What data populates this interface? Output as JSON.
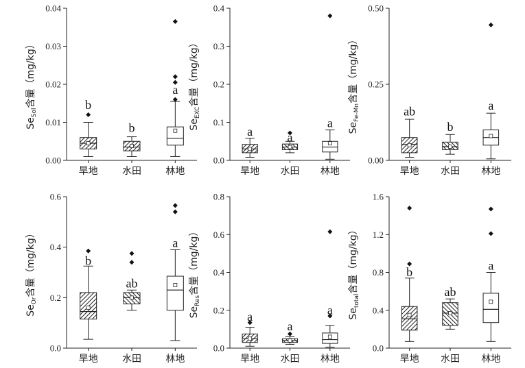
{
  "chart_data": [
    {
      "type": "boxplot",
      "ylabel": {
        "main": "Se",
        "sub": "Sol",
        "rest": "含量（mg/kg）"
      },
      "ylim": [
        0,
        0.04
      ],
      "yticks": [
        0,
        0.01,
        0.02,
        0.03,
        0.04
      ],
      "ytick_labels": [
        "0.00",
        "0.01",
        "0.02",
        "0.03",
        "0.04"
      ],
      "categories": [
        "旱地",
        "水田",
        "林地"
      ],
      "boxes": [
        {
          "q1": 0.003,
          "median": 0.0045,
          "q3": 0.006,
          "whisker_low": 0.001,
          "whisker_high": 0.01,
          "mean": 0.0045,
          "outliers": [
            0.012
          ],
          "sig": "b",
          "sig_y": 0.0135,
          "pattern": "fwd"
        },
        {
          "q1": 0.0025,
          "median": 0.0035,
          "q3": 0.005,
          "whisker_low": 0.001,
          "whisker_high": 0.0062,
          "mean": 0.0038,
          "outliers": [],
          "sig": "b",
          "sig_y": 0.0075,
          "pattern": "fwd"
        },
        {
          "q1": 0.004,
          "median": 0.0058,
          "q3": 0.0088,
          "whisker_low": 0.001,
          "whisker_high": 0.0155,
          "mean": 0.0078,
          "outliers": [
            0.0365,
            0.022,
            0.0205,
            0.016
          ],
          "sig": "a",
          "sig_y": 0.0175,
          "pattern": "none"
        }
      ]
    },
    {
      "type": "boxplot",
      "ylabel": {
        "main": "Se",
        "sub": "EXC",
        "rest": "含量（mg/kg）"
      },
      "ylim": [
        0,
        0.4
      ],
      "yticks": [
        0,
        0.1,
        0.2,
        0.3,
        0.4
      ],
      "ytick_labels": [
        "0.0",
        "0.1",
        "0.2",
        "0.3",
        "0.4"
      ],
      "categories": [
        "旱地",
        "水田",
        "林地"
      ],
      "boxes": [
        {
          "q1": 0.02,
          "median": 0.03,
          "q3": 0.042,
          "whisker_low": 0.008,
          "whisker_high": 0.058,
          "mean": 0.03,
          "outliers": [],
          "sig": "a",
          "sig_y": 0.065,
          "pattern": "fwd"
        },
        {
          "q1": 0.028,
          "median": 0.035,
          "q3": 0.043,
          "whisker_low": 0.02,
          "whisker_high": 0.05,
          "mean": 0.035,
          "outliers": [
            0.072
          ],
          "sig": "a",
          "sig_y": 0.05,
          "pattern": "back"
        },
        {
          "q1": 0.022,
          "median": 0.035,
          "q3": 0.05,
          "whisker_low": 0.003,
          "whisker_high": 0.08,
          "mean": 0.045,
          "outliers": [
            0.38
          ],
          "sig": "a",
          "sig_y": 0.087,
          "pattern": "none"
        }
      ]
    },
    {
      "type": "boxplot",
      "ylabel": {
        "main": "Se",
        "sub": "Fe-Mn",
        "rest": "含量（mg/kg）"
      },
      "ylim": [
        0,
        0.5
      ],
      "yticks": [
        0,
        0.25,
        0.5
      ],
      "ytick_labels": [
        "0.00",
        "0.25",
        "0.50"
      ],
      "categories": [
        "旱地",
        "水田",
        "林地"
      ],
      "boxes": [
        {
          "q1": 0.025,
          "median": 0.052,
          "q3": 0.075,
          "whisker_low": 0.01,
          "whisker_high": 0.135,
          "mean": 0.05,
          "outliers": [],
          "sig": "ab",
          "sig_y": 0.147,
          "pattern": "fwd"
        },
        {
          "q1": 0.035,
          "median": 0.045,
          "q3": 0.06,
          "whisker_low": 0.02,
          "whisker_high": 0.085,
          "mean": 0.045,
          "outliers": [],
          "sig": "b",
          "sig_y": 0.097,
          "pattern": "back"
        },
        {
          "q1": 0.05,
          "median": 0.075,
          "q3": 0.1,
          "whisker_low": 0.005,
          "whisker_high": 0.155,
          "mean": 0.08,
          "outliers": [
            0.445
          ],
          "sig": "a",
          "sig_y": 0.167,
          "pattern": "none"
        }
      ]
    },
    {
      "type": "boxplot",
      "ylabel": {
        "main": "Se",
        "sub": "Or",
        "rest": "含量（mg/kg）"
      },
      "ylim": [
        0,
        0.6
      ],
      "yticks": [
        0,
        0.2,
        0.4,
        0.6
      ],
      "ytick_labels": [
        "0.0",
        "0.2",
        "0.4",
        "0.6"
      ],
      "categories": [
        "旱地",
        "水田",
        "林地"
      ],
      "boxes": [
        {
          "q1": 0.115,
          "median": 0.145,
          "q3": 0.22,
          "whisker_low": 0.035,
          "whisker_high": 0.325,
          "mean": 0.16,
          "outliers": [
            0.385
          ],
          "sig": "b",
          "sig_y": 0.33,
          "pattern": "fwd"
        },
        {
          "q1": 0.175,
          "median": 0.2,
          "q3": 0.22,
          "whisker_low": 0.15,
          "whisker_high": 0.23,
          "mean": 0.2,
          "outliers": [
            0.375,
            0.34
          ],
          "sig": "ab",
          "sig_y": 0.24,
          "pattern": "back"
        },
        {
          "q1": 0.15,
          "median": 0.23,
          "q3": 0.285,
          "whisker_low": 0.03,
          "whisker_high": 0.39,
          "mean": 0.25,
          "outliers": [
            0.565,
            0.54
          ],
          "sig": "a",
          "sig_y": 0.4,
          "pattern": "none"
        }
      ]
    },
    {
      "type": "boxplot",
      "ylabel": {
        "main": "Se",
        "sub": "Res",
        "rest": "含量（mg/kg）"
      },
      "ylim": [
        0,
        0.8
      ],
      "yticks": [
        0,
        0.2,
        0.4,
        0.6,
        0.8
      ],
      "ytick_labels": [
        "0.0",
        "0.2",
        "0.4",
        "0.6",
        "0.8"
      ],
      "categories": [
        "旱地",
        "水田",
        "林地"
      ],
      "boxes": [
        {
          "q1": 0.03,
          "median": 0.05,
          "q3": 0.075,
          "whisker_low": 0.01,
          "whisker_high": 0.11,
          "mean": 0.05,
          "outliers": [
            0.135
          ],
          "sig": "a",
          "sig_y": 0.145,
          "pattern": "fwd"
        },
        {
          "q1": 0.03,
          "median": 0.04,
          "q3": 0.05,
          "whisker_low": 0.02,
          "whisker_high": 0.06,
          "mean": 0.04,
          "outliers": [
            0.075
          ],
          "sig": "a",
          "sig_y": 0.095,
          "pattern": "back"
        },
        {
          "q1": 0.025,
          "median": 0.045,
          "q3": 0.08,
          "whisker_low": 0.005,
          "whisker_high": 0.12,
          "mean": 0.06,
          "outliers": [
            0.615,
            0.17
          ],
          "sig": "a",
          "sig_y": 0.18,
          "pattern": "none"
        }
      ]
    },
    {
      "type": "boxplot",
      "ylabel": {
        "main": "Se",
        "sub": "total",
        "rest": "含量（mg/kg）"
      },
      "ylim": [
        0,
        1.6
      ],
      "yticks": [
        0,
        0.4,
        0.8,
        1.2,
        1.6
      ],
      "ytick_labels": [
        "0.0",
        "0.4",
        "0.8",
        "1.2",
        "1.6"
      ],
      "categories": [
        "旱地",
        "水田",
        "林地"
      ],
      "boxes": [
        {
          "q1": 0.19,
          "median": 0.31,
          "q3": 0.44,
          "whisker_low": 0.07,
          "whisker_high": 0.74,
          "mean": 0.35,
          "outliers": [
            1.48,
            0.89
          ],
          "sig": "b",
          "sig_y": 0.76,
          "pattern": "fwd"
        },
        {
          "q1": 0.24,
          "median": 0.37,
          "q3": 0.48,
          "whisker_low": 0.2,
          "whisker_high": 0.52,
          "mean": 0.37,
          "outliers": [],
          "sig": "ab",
          "sig_y": 0.55,
          "pattern": "back"
        },
        {
          "q1": 0.27,
          "median": 0.41,
          "q3": 0.58,
          "whisker_low": 0.07,
          "whisker_high": 0.8,
          "mean": 0.49,
          "outliers": [
            1.47,
            1.21
          ],
          "sig": "a",
          "sig_y": 0.83,
          "pattern": "none"
        }
      ]
    }
  ]
}
